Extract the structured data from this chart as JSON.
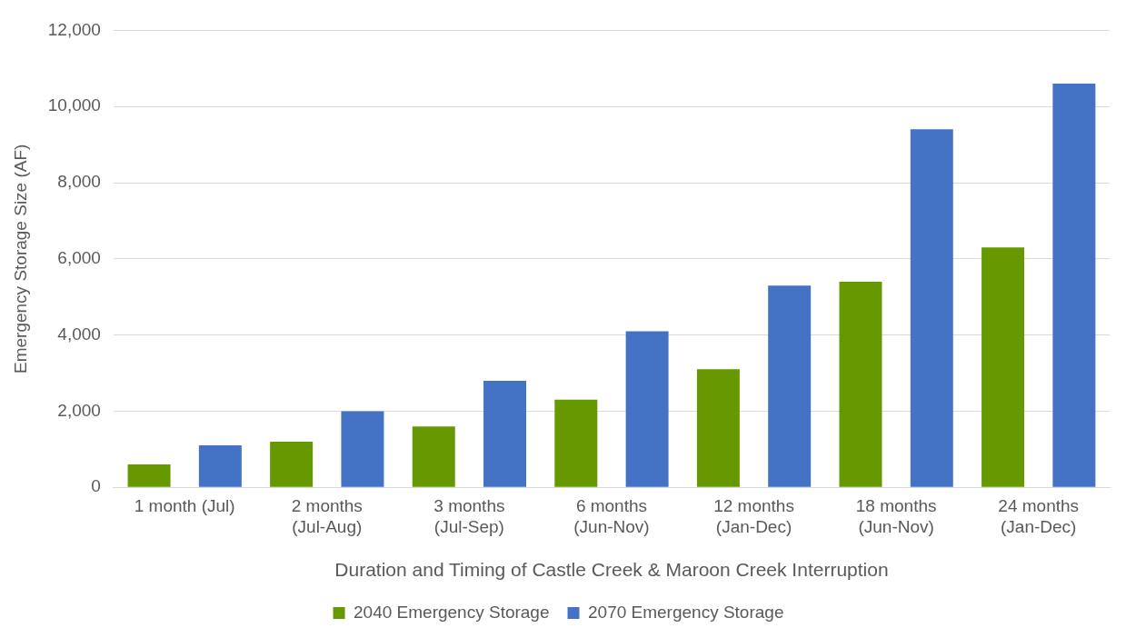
{
  "chart_data": {
    "type": "bar",
    "xlabel": "Duration and Timing of Castle Creek & Maroon Creek Interruption",
    "ylabel": "Emergency Storage Size (AF)",
    "categories": [
      "1 month (Jul)",
      "2 months (Jul-Aug)",
      "3 months (Jul-Sep)",
      "6 months (Jun-Nov)",
      "12 months (Jan-Dec)",
      "18 months (Jun-Nov)",
      "24 months (Jan-Dec)"
    ],
    "series": [
      {
        "name": "2040 Emergency Storage",
        "color": "#669900",
        "values": [
          600,
          1200,
          1600,
          2300,
          3100,
          5400,
          6300
        ]
      },
      {
        "name": "2070 Emergency Storage",
        "color": "#4472c4",
        "values": [
          1100,
          2000,
          2800,
          4100,
          5300,
          9400,
          10600
        ]
      }
    ],
    "ylim": [
      0,
      12000
    ],
    "yticks": [
      0,
      {
        "value": 2000,
        "label": "2,000"
      },
      {
        "value": 4000,
        "label": "4,000"
      },
      {
        "value": 6000,
        "label": "6,000"
      },
      {
        "value": 8000,
        "label": "8,000"
      },
      {
        "value": 10000,
        "label": "10,000"
      },
      {
        "value": 12000,
        "label": "12,000"
      }
    ],
    "grid": "y",
    "legend": "bottom"
  }
}
